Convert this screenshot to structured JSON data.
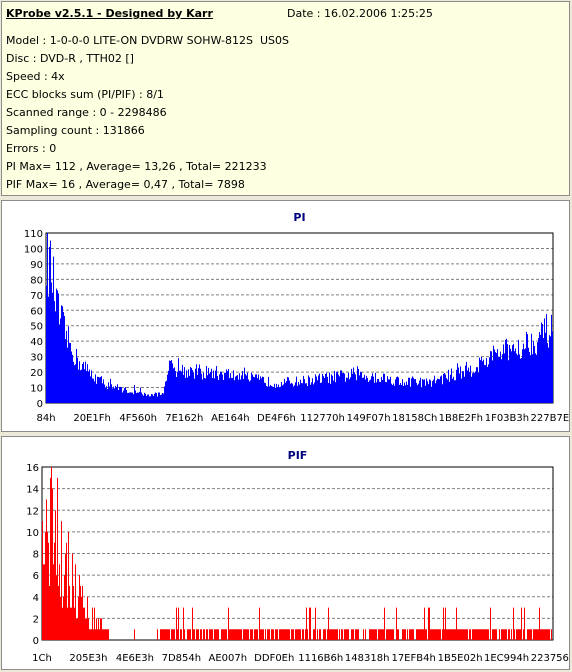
{
  "info": {
    "title": "KProbe v2.5.1 - Designed by Karr",
    "date": "Date : 16.02.2006 1:25:25",
    "lines": [
      "Model : 1-0-0-0 LITE-ON DVDRW SOHW-812S  US0S",
      "Disc : DVD-R , TTH02 []",
      "Speed : 4x",
      "ECC blocks sum (PI/PIF) : 8/1",
      "Scanned range : 0 - 2298486",
      "Sampling count : 131866",
      "Errors : 0",
      "PI Max= 112 , Average= 13,26 , Total= 221233",
      "PIF Max= 16 , Average= 0,47 , Total= 7898"
    ]
  },
  "chart_data": [
    {
      "type": "area",
      "title": "PI",
      "xlabel": "",
      "ylabel": "",
      "ylim": [
        0,
        110
      ],
      "yticks": [
        0,
        10,
        20,
        30,
        40,
        50,
        60,
        70,
        80,
        90,
        100,
        110
      ],
      "x_tick_labels": [
        "84h",
        "20E1Fh",
        "4F560h",
        "7E162h",
        "AE164h",
        "DE4F6h",
        "112770h",
        "149F07h",
        "18158Ch",
        "1B8E2Fh",
        "1F03B3h",
        "227B7Eh"
      ],
      "grid": true,
      "color": "#0000ff",
      "sample_fraction": [
        0,
        0.01,
        0.02,
        0.04,
        0.06,
        0.09,
        0.12,
        0.16,
        0.2,
        0.23,
        0.24,
        0.25,
        0.3,
        0.35,
        0.4,
        0.45,
        0.5,
        0.55,
        0.6,
        0.65,
        0.7,
        0.75,
        0.8,
        0.85,
        0.88,
        0.91,
        0.94,
        0.97,
        0.99,
        1.0
      ],
      "values": [
        95,
        85,
        62,
        42,
        28,
        18,
        12,
        8,
        5,
        6,
        24,
        22,
        20,
        19,
        16,
        13,
        14,
        16,
        18,
        17,
        14,
        13,
        18,
        24,
        30,
        34,
        38,
        42,
        47,
        45
      ]
    },
    {
      "type": "bar",
      "title": "PIF",
      "xlabel": "",
      "ylabel": "",
      "ylim": [
        0,
        16
      ],
      "yticks": [
        0,
        2,
        4,
        6,
        8,
        10,
        12,
        14,
        16
      ],
      "x_tick_labels": [
        "1Ch",
        "205E3h",
        "4E6E3h",
        "7D854h",
        "AE007h",
        "DDF0Eh",
        "1116B6h",
        "148318h",
        "17EFB4h",
        "1B5E02h",
        "1EC994h",
        "223756h"
      ],
      "grid": true,
      "color": "#ff0000",
      "sample_fraction": [
        0,
        0.01,
        0.02,
        0.03,
        0.05,
        0.07,
        0.09,
        0.11,
        0.13,
        0.2,
        0.23,
        0.3,
        0.4,
        0.5,
        0.6,
        0.7,
        0.8,
        0.9,
        1.0
      ],
      "values": [
        10,
        13,
        16,
        13,
        8,
        5,
        3,
        2,
        1,
        0,
        1,
        1,
        1,
        1,
        1,
        1,
        1,
        1,
        1
      ]
    }
  ]
}
